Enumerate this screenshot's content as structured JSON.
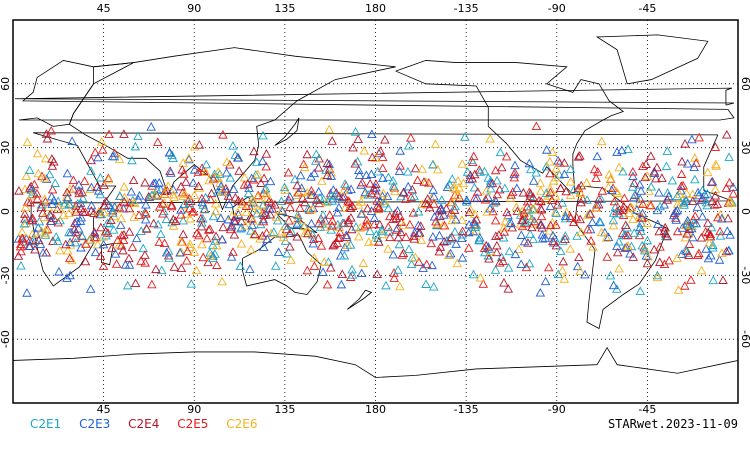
{
  "map": {
    "central_longitude": 180,
    "lon_range": [
      0,
      360
    ],
    "lat_range": [
      -90,
      90
    ],
    "lon_tick_labels": [
      "45",
      "90",
      "135",
      "180",
      "-135",
      "-90",
      "-45"
    ],
    "lat_tick_labels": [
      "60",
      "30",
      "0",
      "-30",
      "-60"
    ],
    "grid": "dotted",
    "coastline_color": "#000000",
    "marker": "open-triangle",
    "observation_latitude_band": [
      -45,
      45
    ]
  },
  "legend": [
    {
      "label": "C2E1",
      "color": "#1ba7c7"
    },
    {
      "label": "C2E3",
      "color": "#1f5fd6"
    },
    {
      "label": "C2E4",
      "color": "#b5162b"
    },
    {
      "label": "C2E5",
      "color": "#e61b1b"
    },
    {
      "label": "C2E6",
      "color": "#f5b21e"
    }
  ],
  "footer": {
    "stamp": "STARwet.2023-11-09"
  }
}
